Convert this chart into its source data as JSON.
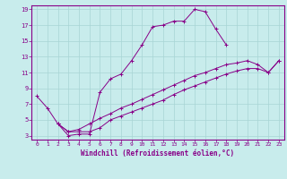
{
  "xlabel": "Windchill (Refroidissement éolien,°C)",
  "xlim": [
    -0.5,
    23.5
  ],
  "ylim": [
    2.5,
    19.5
  ],
  "xticks": [
    0,
    1,
    2,
    3,
    4,
    5,
    6,
    7,
    8,
    9,
    10,
    11,
    12,
    13,
    14,
    15,
    16,
    17,
    18,
    19,
    20,
    21,
    22,
    23
  ],
  "yticks": [
    3,
    5,
    7,
    9,
    11,
    13,
    15,
    17,
    19
  ],
  "bg_color": "#c8ecec",
  "line_color": "#880088",
  "grid_color": "#a8d4d4",
  "line1_x": [
    0,
    1,
    2,
    3,
    4,
    5,
    6,
    7,
    8,
    9,
    10,
    11,
    12,
    13,
    14,
    15,
    16,
    17,
    18
  ],
  "line1_y": [
    8.0,
    6.5,
    4.5,
    3.0,
    3.2,
    3.2,
    8.5,
    10.2,
    10.8,
    12.5,
    14.5,
    16.8,
    17.0,
    17.5,
    17.5,
    19.0,
    18.7,
    16.5,
    14.5
  ],
  "line2_x": [
    2,
    3,
    4,
    5,
    6,
    7,
    8,
    9,
    10,
    11,
    12,
    13,
    14,
    15,
    16,
    17,
    18,
    19,
    20,
    21,
    22,
    23
  ],
  "line2_y": [
    4.5,
    3.5,
    3.5,
    3.5,
    4.0,
    5.0,
    5.5,
    6.0,
    6.5,
    7.0,
    7.5,
    8.2,
    8.8,
    9.3,
    9.8,
    10.3,
    10.8,
    11.2,
    11.5,
    11.5,
    11.0,
    12.5
  ],
  "line3_x": [
    2,
    3,
    4,
    5,
    6,
    7,
    8,
    9,
    10,
    11,
    12,
    13,
    14,
    15,
    16,
    17,
    18,
    19,
    20,
    21,
    22,
    23
  ],
  "line3_y": [
    4.5,
    3.5,
    3.8,
    4.5,
    5.2,
    5.8,
    6.5,
    7.0,
    7.6,
    8.2,
    8.8,
    9.4,
    10.0,
    10.6,
    11.0,
    11.5,
    12.0,
    12.2,
    12.5,
    12.0,
    11.0,
    12.5
  ]
}
